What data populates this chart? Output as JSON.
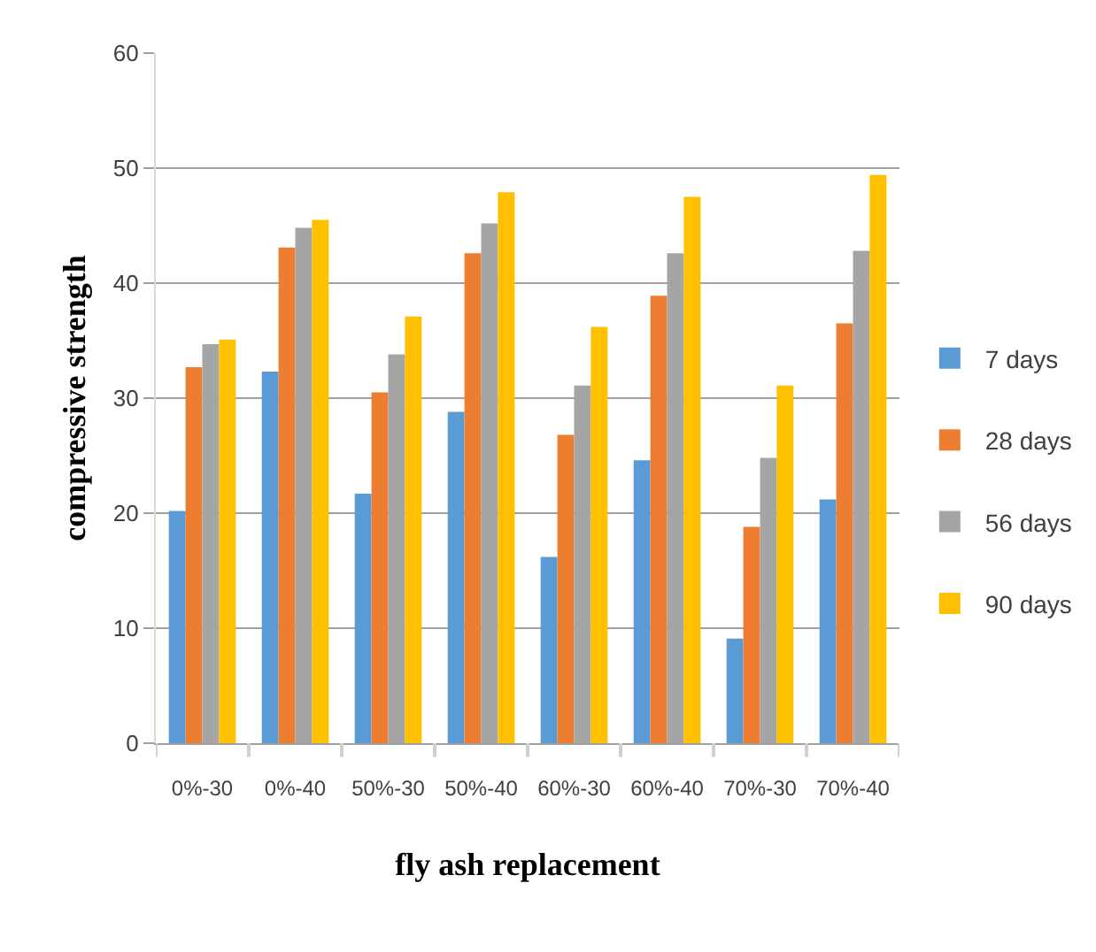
{
  "chart_data": {
    "type": "bar",
    "xlabel": "fly ash replacement",
    "ylabel": "compressive strength",
    "categories": [
      "0%-30",
      "0%-40",
      "50%-30",
      "50%-40",
      "60%-30",
      "60%-40",
      "70%-30",
      "70%-40"
    ],
    "series": [
      {
        "name": "7 days",
        "color": "#5b9bd5",
        "values": [
          20.2,
          32.3,
          21.7,
          28.8,
          16.2,
          24.6,
          9.1,
          21.2
        ]
      },
      {
        "name": "28 days",
        "color": "#ed7d31",
        "values": [
          32.7,
          43.1,
          30.5,
          42.6,
          26.8,
          38.9,
          18.8,
          36.5
        ]
      },
      {
        "name": "56 days",
        "color": "#a5a5a5",
        "values": [
          34.7,
          44.8,
          33.8,
          45.2,
          31.1,
          42.6,
          24.8,
          42.8
        ]
      },
      {
        "name": "90 days",
        "color": "#ffc000",
        "values": [
          35.1,
          45.5,
          37.1,
          47.9,
          36.2,
          47.5,
          31.1,
          49.4
        ]
      }
    ],
    "ylim": [
      0,
      60
    ],
    "yticks": [
      0,
      10,
      20,
      30,
      40,
      50,
      60
    ],
    "grid": "y",
    "legend": "right"
  }
}
